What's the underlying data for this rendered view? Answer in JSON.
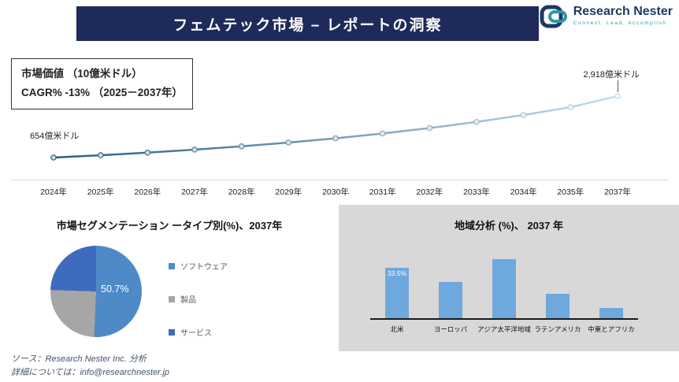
{
  "header": {
    "title": "フェムテック市場 – レポートの洞察"
  },
  "logo": {
    "name": "Research Nester",
    "tagline": "Connect. Lead. Accomplish"
  },
  "info_box": {
    "line1": "市場価値 （10億米ドル）",
    "line2": "CAGR% -13% （2025－2037年）"
  },
  "footer": {
    "line1": "ソース：Research Nester Inc. 分析",
    "line2": "詳細については：info@researchnester.jp"
  },
  "colors": {
    "header_bg": "#1e2a5a",
    "logo_navy": "#1f3864",
    "logo_teal": "#2b9aa8",
    "bar_panel_bg": "#d8d8d8",
    "bar_fill": "#6fa8dc",
    "footer_text": "#44546a"
  },
  "chart_data": [
    {
      "type": "line",
      "title": "市場価値 （10億米ドル）",
      "x": [
        "2024年",
        "2025年",
        "2026年",
        "2027年",
        "2028年",
        "2029年",
        "2030年",
        "2031年",
        "2032年",
        "2033年",
        "2034年",
        "2035年",
        "2037年"
      ],
      "values": [
        654,
        739,
        835,
        944,
        1066,
        1205,
        1362,
        1539,
        1739,
        1965,
        2220,
        2509,
        2918
      ],
      "start_label": "654億米ドル",
      "end_label": "2,918億米ドル",
      "ylim": [
        600,
        3000
      ],
      "grid": false,
      "line_color_start": "#2b5d80",
      "line_color_end": "#c3dff0",
      "note": "CAGR 13% (2025-2037), 2036 not shown on axis"
    },
    {
      "type": "pie",
      "title": "市場セグメンテーション ータイプ別(%)、2037年",
      "labels": [
        "ソフトウェア",
        "製品",
        "サービス"
      ],
      "values": [
        50.7,
        24.8,
        24.5
      ],
      "colors": [
        "#4e8ac8",
        "#a6a6a6",
        "#3f6bbf"
      ],
      "data_label": "50.7%",
      "data_label_slice": 0,
      "legend_position": "right"
    },
    {
      "type": "bar",
      "title": "地域分析 (%)、 2037 年",
      "categories": [
        "北米",
        "ヨーロッパ",
        "アジア太平洋地域",
        "ラテンアメリカ",
        "中東とアフリカ"
      ],
      "values": [
        33.5,
        24,
        39,
        16,
        7
      ],
      "data_label": "33.5%",
      "data_label_bar": 0,
      "bar_color": "#6fa8dc",
      "ylim": [
        0,
        45
      ],
      "grid": false,
      "legend_position": "none"
    }
  ]
}
